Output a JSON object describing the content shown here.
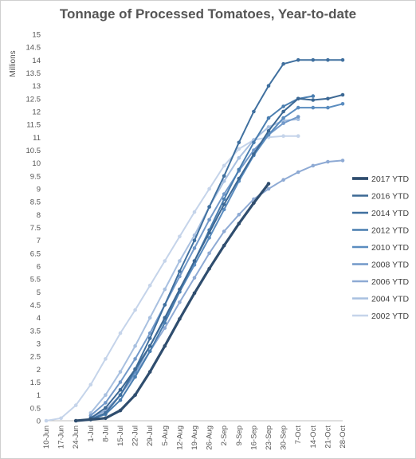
{
  "chart_data": {
    "type": "line",
    "title": "Tonnage of Processed Tomatoes, Year-to-date",
    "ylabel": "Millions",
    "ylim": [
      0,
      15
    ],
    "ytick_step": 0.5,
    "grid": false,
    "legend_position": "right",
    "x_ticks": [
      "10-Jun",
      "17-Jun",
      "24-Jun",
      "1-Jul",
      "8-Jul",
      "15-Jul",
      "22-Jul",
      "29-Jul",
      "5-Aug",
      "12-Aug",
      "19-Aug",
      "26-Aug",
      "2-Sep",
      "9-Sep",
      "16-Sep",
      "23-Sep",
      "30-Sep",
      "7-Oct",
      "14-Oct",
      "21-Oct",
      "28-Oct"
    ],
    "series": [
      {
        "name": "2017 YTD",
        "color": "#2f4d6e",
        "width": 3.2,
        "x": [
          "24-Jun",
          "1-Jul",
          "8-Jul",
          "15-Jul",
          "22-Jul",
          "29-Jul",
          "5-Aug",
          "12-Aug",
          "19-Aug",
          "26-Aug",
          "2-Sep",
          "9-Sep",
          "16-Sep",
          "23-Sep"
        ],
        "values": [
          0,
          0.05,
          0.1,
          0.4,
          1.0,
          1.9,
          2.9,
          3.95,
          4.95,
          5.9,
          6.8,
          7.65,
          8.45,
          9.2
        ]
      },
      {
        "name": "2016 YTD",
        "color": "#3c6894",
        "width": 2,
        "x": [
          "1-Jul",
          "8-Jul",
          "15-Jul",
          "22-Jul",
          "29-Jul",
          "5-Aug",
          "12-Aug",
          "19-Aug",
          "26-Aug",
          "2-Sep",
          "9-Sep",
          "16-Sep",
          "23-Sep",
          "30-Sep",
          "7-Oct",
          "14-Oct",
          "21-Oct",
          "28-Oct"
        ],
        "values": [
          0.1,
          0.5,
          1.2,
          2.0,
          2.9,
          4.0,
          5.1,
          6.2,
          7.3,
          8.4,
          9.4,
          10.35,
          11.25,
          12.0,
          12.5,
          12.45,
          12.5,
          12.65
        ]
      },
      {
        "name": "2014 YTD",
        "color": "#40709f",
        "width": 2,
        "x": [
          "1-Jul",
          "8-Jul",
          "15-Jul",
          "22-Jul",
          "29-Jul",
          "5-Aug",
          "12-Aug",
          "19-Aug",
          "26-Aug",
          "2-Sep",
          "9-Sep",
          "16-Sep",
          "23-Sep",
          "30-Sep",
          "7-Oct",
          "14-Oct",
          "21-Oct",
          "28-Oct"
        ],
        "values": [
          0.05,
          0.3,
          1.0,
          2.0,
          3.2,
          4.5,
          5.8,
          7.0,
          8.3,
          9.5,
          10.8,
          12.0,
          13.0,
          13.85,
          14.0,
          14.0,
          14.0,
          14.0
        ]
      },
      {
        "name": "2012 YTD",
        "color": "#4a7eb0",
        "width": 2,
        "x": [
          "1-Jul",
          "8-Jul",
          "15-Jul",
          "22-Jul",
          "29-Jul",
          "5-Aug",
          "12-Aug",
          "19-Aug",
          "26-Aug",
          "2-Sep",
          "9-Sep",
          "16-Sep",
          "23-Sep",
          "30-Sep",
          "7-Oct",
          "14-Oct"
        ],
        "values": [
          0.05,
          0.25,
          0.8,
          1.7,
          2.7,
          3.8,
          5.0,
          6.2,
          7.4,
          8.6,
          9.75,
          10.8,
          11.75,
          12.2,
          12.5,
          12.6
        ]
      },
      {
        "name": "2010 YTD",
        "color": "#5a8cbf",
        "width": 2,
        "x": [
          "1-Jul",
          "8-Jul",
          "15-Jul",
          "22-Jul",
          "29-Jul",
          "5-Aug",
          "12-Aug",
          "19-Aug",
          "26-Aug",
          "2-Sep",
          "9-Sep",
          "16-Sep",
          "23-Sep",
          "30-Sep",
          "7-Oct",
          "14-Oct",
          "21-Oct",
          "28-Oct"
        ],
        "values": [
          0.05,
          0.3,
          1.0,
          1.9,
          2.9,
          3.95,
          5.0,
          6.05,
          7.1,
          8.2,
          9.3,
          10.3,
          11.1,
          11.75,
          12.15,
          12.15,
          12.15,
          12.3
        ]
      },
      {
        "name": "2008 YTD",
        "color": "#7299c9",
        "width": 2,
        "x": [
          "1-Jul",
          "8-Jul",
          "15-Jul",
          "22-Jul",
          "29-Jul",
          "5-Aug",
          "12-Aug",
          "19-Aug",
          "26-Aug",
          "2-Sep",
          "9-Sep",
          "16-Sep",
          "23-Sep",
          "30-Sep",
          "7-Oct"
        ],
        "values": [
          0.2,
          0.7,
          1.5,
          2.4,
          3.4,
          4.5,
          5.6,
          6.7,
          7.8,
          8.8,
          9.7,
          10.5,
          11.1,
          11.55,
          11.8
        ]
      },
      {
        "name": "2006 YTD",
        "color": "#8eaad4",
        "width": 2,
        "x": [
          "1-Jul",
          "8-Jul",
          "15-Jul",
          "22-Jul",
          "29-Jul",
          "5-Aug",
          "12-Aug",
          "19-Aug",
          "26-Aug",
          "2-Sep",
          "9-Sep",
          "16-Sep",
          "23-Sep",
          "30-Sep",
          "7-Oct",
          "14-Oct",
          "21-Oct",
          "28-Oct"
        ],
        "values": [
          0.1,
          0.4,
          1.0,
          1.8,
          2.7,
          3.6,
          4.6,
          5.55,
          6.5,
          7.35,
          8.0,
          8.6,
          9.0,
          9.35,
          9.65,
          9.9,
          10.05,
          10.1
        ]
      },
      {
        "name": "2004 YTD",
        "color": "#a8c0e0",
        "width": 2,
        "x": [
          "1-Jul",
          "8-Jul",
          "15-Jul",
          "22-Jul",
          "29-Jul",
          "5-Aug",
          "12-Aug",
          "19-Aug",
          "26-Aug",
          "2-Sep",
          "9-Sep",
          "16-Sep",
          "23-Sep",
          "30-Sep",
          "7-Oct"
        ],
        "values": [
          0.3,
          1.0,
          1.9,
          2.9,
          4.0,
          5.1,
          6.2,
          7.2,
          8.3,
          9.3,
          10.2,
          10.9,
          11.4,
          11.65,
          11.7
        ]
      },
      {
        "name": "2002 YTD",
        "color": "#c5d4ea",
        "width": 2,
        "x": [
          "10-Jun",
          "17-Jun",
          "24-Jun",
          "1-Jul",
          "8-Jul",
          "15-Jul",
          "22-Jul",
          "29-Jul",
          "5-Aug",
          "12-Aug",
          "19-Aug",
          "26-Aug",
          "2-Sep",
          "9-Sep",
          "16-Sep",
          "23-Sep",
          "30-Sep",
          "7-Oct"
        ],
        "values": [
          0.0,
          0.1,
          0.6,
          1.4,
          2.4,
          3.4,
          4.3,
          5.25,
          6.2,
          7.15,
          8.1,
          9.0,
          9.9,
          10.55,
          10.9,
          11.0,
          11.05,
          11.05
        ]
      }
    ]
  }
}
